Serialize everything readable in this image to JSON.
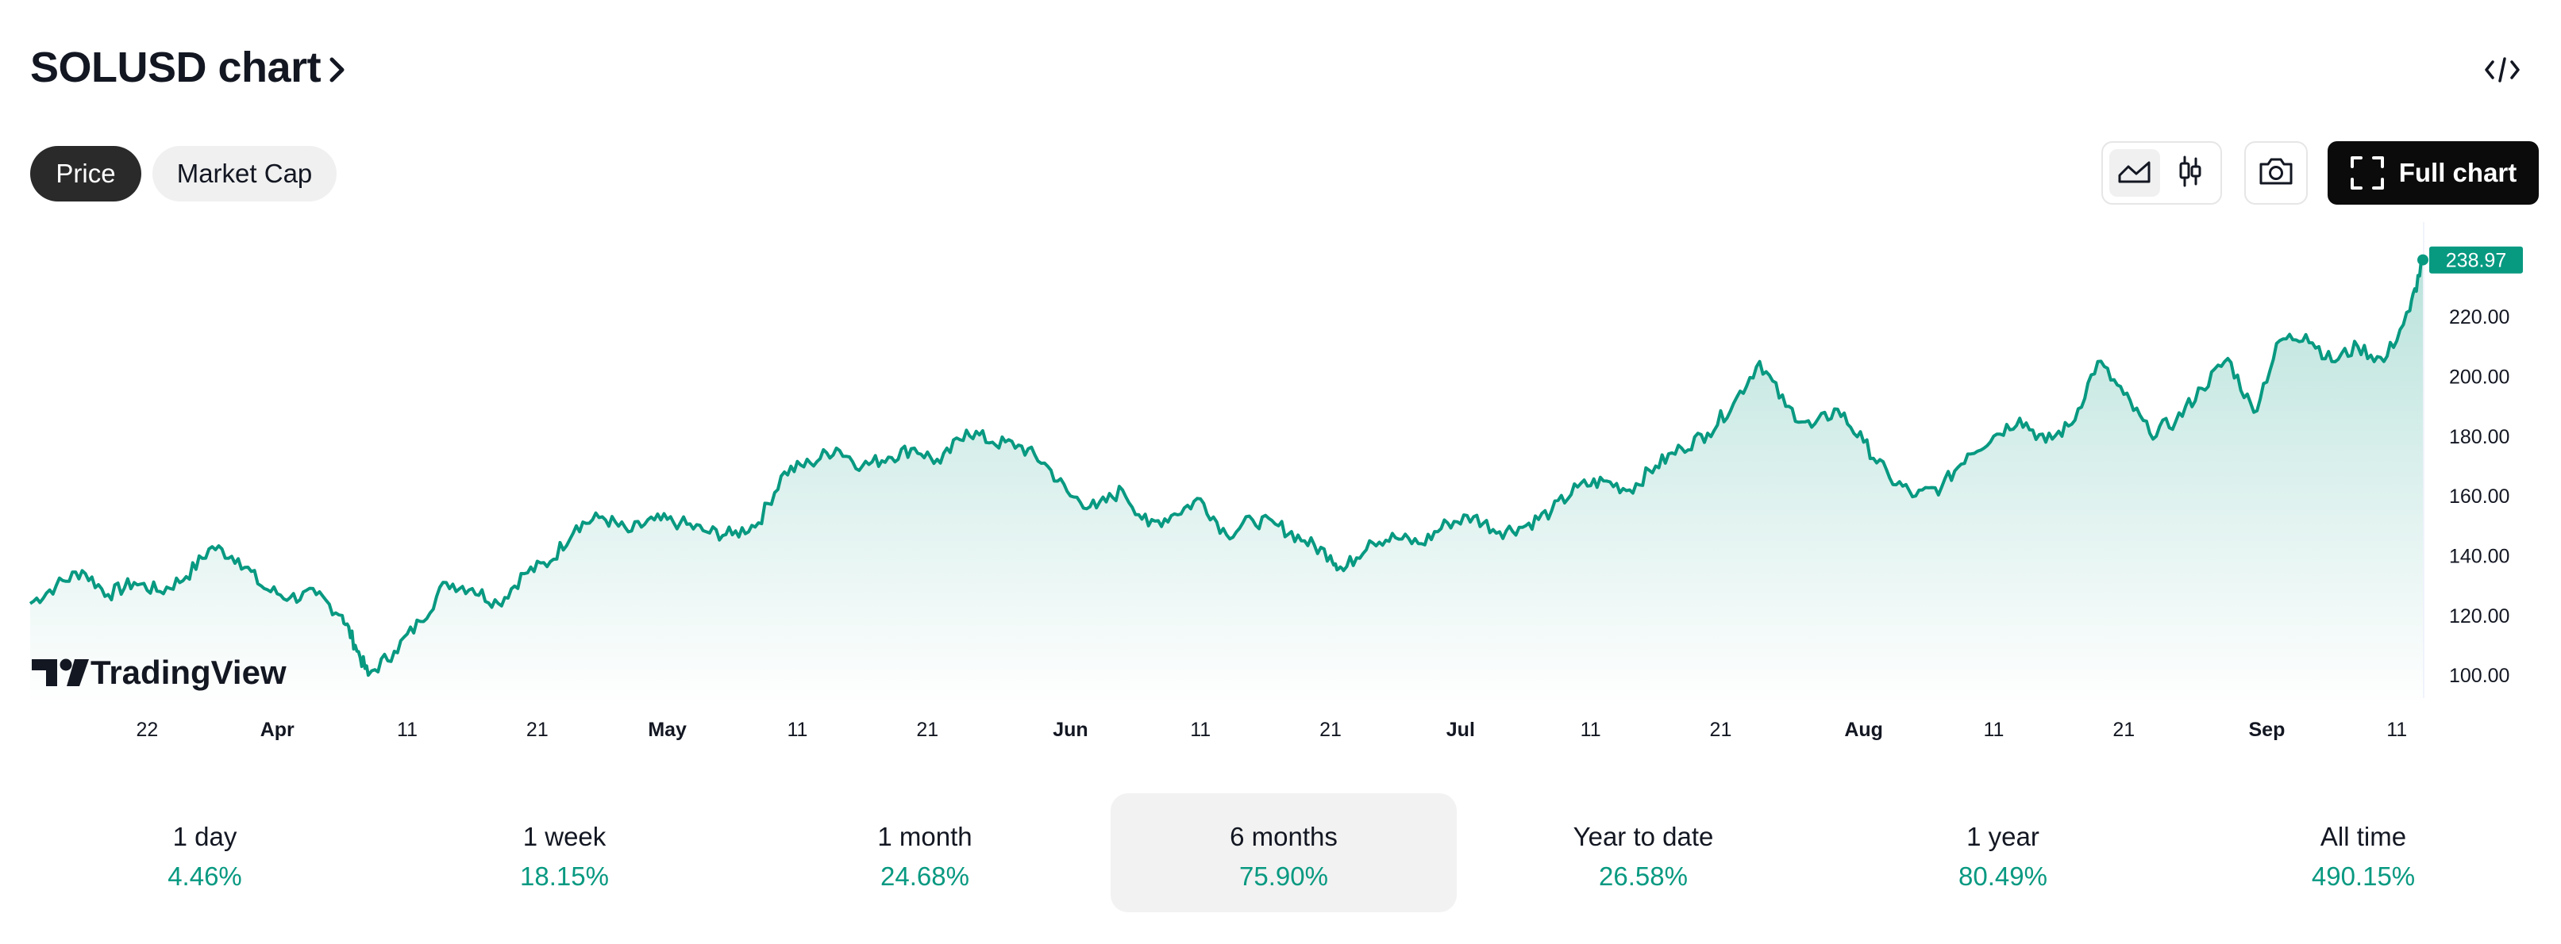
{
  "header": {
    "title": "SOLUSD chart",
    "embed_icon": "code-icon"
  },
  "data_toggle": {
    "price_label": "Price",
    "market_cap_label": "Market Cap",
    "active": "Price"
  },
  "toolbar": {
    "chart_type_line_icon": "area-chart-icon",
    "chart_type_candle_icon": "candlestick-icon",
    "snapshot_icon": "camera-icon",
    "full_chart_label": "Full chart",
    "full_chart_icon": "fullscreen-icon"
  },
  "watermark": "TradingView",
  "colors": {
    "line": "#089981",
    "last_price_bg": "#089981",
    "positive": "#089981",
    "active_pill": "#2a2a2a",
    "full_chart_bg": "#0b0b0b"
  },
  "chart_data": {
    "type": "area",
    "ylim": [
      95,
      245
    ],
    "yticks": [
      "220.00",
      "200.00",
      "180.00",
      "160.00",
      "140.00",
      "120.00",
      "100.00"
    ],
    "last_price": "238.97",
    "xticks": [
      {
        "label": "22",
        "x": "2025-03-22",
        "bold": false
      },
      {
        "label": "Apr",
        "x": "2025-04-01",
        "bold": true
      },
      {
        "label": "11",
        "x": "2025-04-11",
        "bold": false
      },
      {
        "label": "21",
        "x": "2025-04-21",
        "bold": false
      },
      {
        "label": "May",
        "x": "2025-05-01",
        "bold": true
      },
      {
        "label": "11",
        "x": "2025-05-11",
        "bold": false
      },
      {
        "label": "21",
        "x": "2025-05-21",
        "bold": false
      },
      {
        "label": "Jun",
        "x": "2025-06-01",
        "bold": true
      },
      {
        "label": "11",
        "x": "2025-06-11",
        "bold": false
      },
      {
        "label": "21",
        "x": "2025-06-21",
        "bold": false
      },
      {
        "label": "Jul",
        "x": "2025-07-01",
        "bold": true
      },
      {
        "label": "11",
        "x": "2025-07-11",
        "bold": false
      },
      {
        "label": "21",
        "x": "2025-07-21",
        "bold": false
      },
      {
        "label": "Aug",
        "x": "2025-08-01",
        "bold": true
      },
      {
        "label": "11",
        "x": "2025-08-11",
        "bold": false
      },
      {
        "label": "21",
        "x": "2025-08-21",
        "bold": false
      },
      {
        "label": "Sep",
        "x": "2025-09-01",
        "bold": true
      },
      {
        "label": "11",
        "x": "2025-09-11",
        "bold": false
      }
    ],
    "series": [
      {
        "x": [
          "2025-03-13",
          "2025-03-15",
          "2025-03-17",
          "2025-03-19",
          "2025-03-21",
          "2025-03-23",
          "2025-03-25",
          "2025-03-27",
          "2025-03-29",
          "2025-03-31",
          "2025-04-02",
          "2025-04-04",
          "2025-04-06",
          "2025-04-07",
          "2025-04-08",
          "2025-04-10",
          "2025-04-12",
          "2025-04-14",
          "2025-04-16",
          "2025-04-18",
          "2025-04-20",
          "2025-04-22",
          "2025-04-24",
          "2025-04-26",
          "2025-04-28",
          "2025-04-30",
          "2025-05-02",
          "2025-05-04",
          "2025-05-06",
          "2025-05-08",
          "2025-05-10",
          "2025-05-12",
          "2025-05-14",
          "2025-05-16",
          "2025-05-18",
          "2025-05-20",
          "2025-05-22",
          "2025-05-24",
          "2025-05-26",
          "2025-05-28",
          "2025-05-30",
          "2025-06-01",
          "2025-06-03",
          "2025-06-05",
          "2025-06-07",
          "2025-06-09",
          "2025-06-11",
          "2025-06-13",
          "2025-06-15",
          "2025-06-17",
          "2025-06-19",
          "2025-06-21",
          "2025-06-22",
          "2025-06-24",
          "2025-06-26",
          "2025-06-28",
          "2025-06-30",
          "2025-07-02",
          "2025-07-04",
          "2025-07-06",
          "2025-07-08",
          "2025-07-10",
          "2025-07-12",
          "2025-07-14",
          "2025-07-16",
          "2025-07-18",
          "2025-07-20",
          "2025-07-22",
          "2025-07-24",
          "2025-07-26",
          "2025-07-28",
          "2025-07-30",
          "2025-08-01",
          "2025-08-03",
          "2025-08-05",
          "2025-08-07",
          "2025-08-09",
          "2025-08-11",
          "2025-08-13",
          "2025-08-15",
          "2025-08-17",
          "2025-08-19",
          "2025-08-21",
          "2025-08-23",
          "2025-08-25",
          "2025-08-27",
          "2025-08-29",
          "2025-08-31",
          "2025-09-02",
          "2025-09-04",
          "2025-09-06",
          "2025-09-08",
          "2025-09-10",
          "2025-09-12",
          "2025-09-13"
        ],
        "y": [
          124,
          130,
          135,
          127,
          131,
          128,
          133,
          143,
          139,
          129,
          126,
          127,
          120,
          110,
          100,
          108,
          118,
          131,
          129,
          124,
          134,
          138,
          150,
          153,
          148,
          152,
          151,
          148,
          147,
          151,
          168,
          171,
          176,
          170,
          173,
          176,
          171,
          182,
          178,
          177,
          171,
          160,
          156,
          162,
          150,
          154,
          159,
          147,
          152,
          150,
          145,
          140,
          135,
          145,
          146,
          144,
          151,
          153,
          148,
          150,
          155,
          163,
          165,
          162,
          170,
          176,
          181,
          191,
          205,
          190,
          183,
          189,
          178,
          166,
          160,
          163,
          174,
          180,
          186,
          178,
          184,
          205,
          194,
          181,
          185,
          196,
          206,
          188,
          212,
          214,
          205,
          210,
          205,
          222,
          239
        ]
      }
    ]
  },
  "periods": [
    {
      "label": "1 day",
      "value": "4.46%"
    },
    {
      "label": "1 week",
      "value": "18.15%"
    },
    {
      "label": "1 month",
      "value": "24.68%"
    },
    {
      "label": "6 months",
      "value": "75.90%"
    },
    {
      "label": "Year to date",
      "value": "26.58%"
    },
    {
      "label": "1 year",
      "value": "80.49%"
    },
    {
      "label": "All time",
      "value": "490.15%"
    }
  ],
  "active_period": "6 months"
}
